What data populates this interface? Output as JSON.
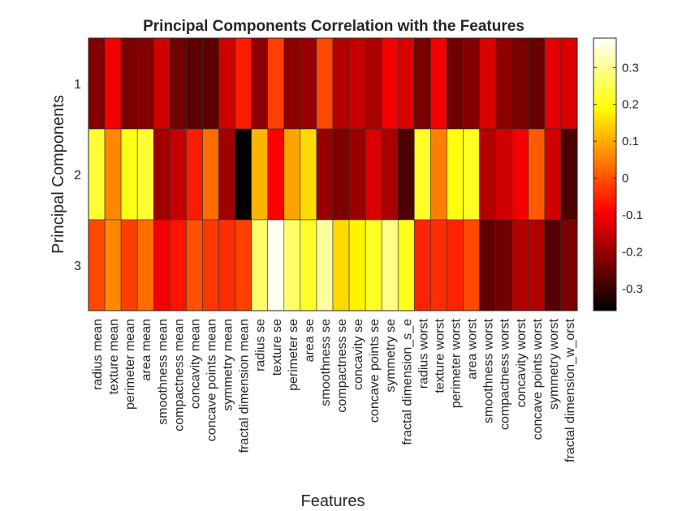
{
  "chart_data": {
    "type": "heatmap",
    "title": "Principal Components Correlation with the Features",
    "xlabel": "Features",
    "ylabel": "Principal Components",
    "colormap": "hot",
    "clim": [
      -0.36,
      0.38
    ],
    "colorbar_ticks": [
      "0.3",
      "0.2",
      "0.1",
      "0",
      "-0.1",
      "-0.2",
      "-0.3"
    ],
    "colorbar_tick_values": [
      0.3,
      0.2,
      0.1,
      0,
      -0.1,
      -0.2,
      -0.3
    ],
    "rows": [
      "1",
      "2",
      "3"
    ],
    "columns": [
      "radius mean",
      "texture mean",
      "perimeter mean",
      "area mean",
      "smoothness mean",
      "compactness mean",
      "concavity mean",
      "concave points mean",
      "symmetry mean",
      "fractal dimension mean",
      "radius se",
      "texture se",
      "perimeter se",
      "area se",
      "smoothness se",
      "compactness se",
      "concavity se",
      "concave points se",
      "symmetry se",
      "fractal dimension_s_e",
      "radius worst",
      "texture worst",
      "perimeter worst",
      "area worst",
      "smoothness worst",
      "compactness worst",
      "concavity worst",
      "concave points worst",
      "symmetry worst",
      "fractal dimension_w_orst"
    ],
    "values": [
      [
        -0.22,
        -0.1,
        -0.23,
        -0.22,
        -0.14,
        -0.24,
        -0.26,
        -0.26,
        -0.14,
        -0.06,
        -0.21,
        -0.02,
        -0.21,
        -0.2,
        -0.01,
        -0.17,
        -0.15,
        -0.18,
        -0.1,
        -0.13,
        -0.23,
        -0.1,
        -0.24,
        -0.22,
        -0.13,
        -0.21,
        -0.23,
        -0.25,
        -0.12,
        -0.13
      ],
      [
        0.23,
        0.06,
        0.21,
        0.23,
        -0.19,
        -0.15,
        -0.06,
        0.03,
        -0.19,
        -0.37,
        0.11,
        -0.09,
        0.09,
        0.15,
        -0.2,
        -0.23,
        -0.2,
        -0.13,
        -0.18,
        -0.28,
        0.22,
        0.05,
        0.2,
        0.22,
        -0.17,
        -0.14,
        -0.1,
        0.01,
        -0.14,
        -0.28
      ],
      [
        -0.01,
        0.06,
        -0.02,
        0.03,
        -0.1,
        -0.07,
        0.0,
        -0.03,
        -0.04,
        -0.02,
        0.27,
        0.37,
        0.27,
        0.22,
        0.31,
        0.15,
        0.18,
        0.22,
        0.29,
        0.21,
        -0.05,
        -0.04,
        -0.05,
        -0.01,
        -0.26,
        -0.24,
        -0.17,
        -0.17,
        -0.27,
        -0.23
      ]
    ]
  }
}
